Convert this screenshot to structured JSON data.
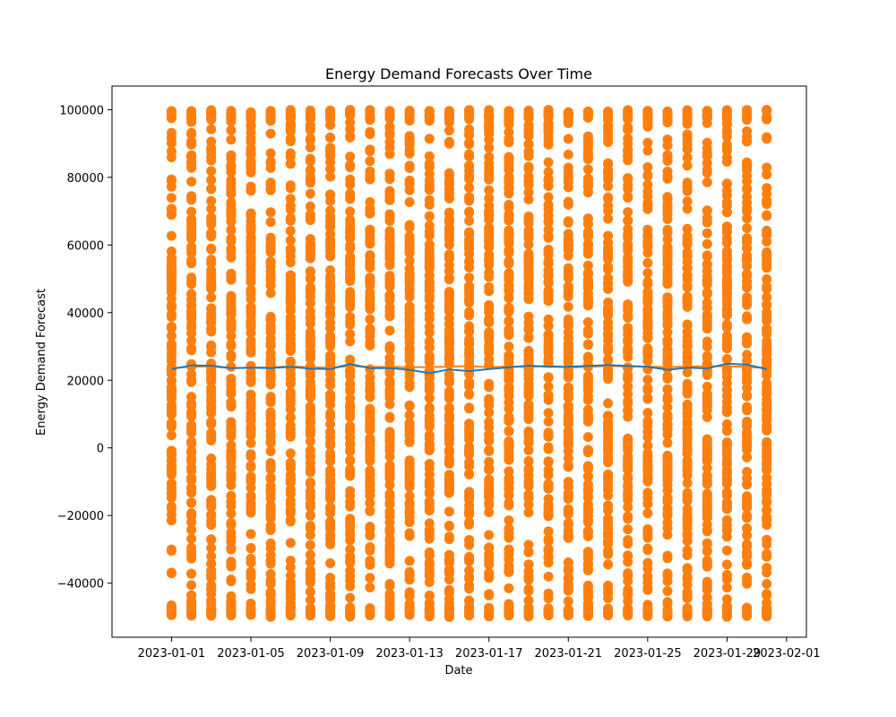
{
  "chart_data": {
    "type": "scatter",
    "title": "Energy Demand Forecasts Over Time",
    "xlabel": "Date",
    "ylabel": "Energy Demand Forecast",
    "xlim": [
      "2022-12-29",
      "2023-02-02"
    ],
    "ylim": [
      -56000,
      107000
    ],
    "grid": false,
    "x_ticks": [
      "2023-01-01",
      "2023-01-05",
      "2023-01-09",
      "2023-01-13",
      "2023-01-17",
      "2023-01-21",
      "2023-01-25",
      "2023-01-29",
      "2023-02-01"
    ],
    "y_ticks": [
      -40000,
      -20000,
      0,
      20000,
      40000,
      60000,
      80000,
      100000
    ],
    "y_tick_labels": [
      "−40000",
      "−20000",
      "0",
      "20000",
      "40000",
      "60000",
      "80000",
      "100000"
    ],
    "dates": [
      "2023-01-01",
      "2023-01-02",
      "2023-01-03",
      "2023-01-04",
      "2023-01-05",
      "2023-01-06",
      "2023-01-07",
      "2023-01-08",
      "2023-01-09",
      "2023-01-10",
      "2023-01-11",
      "2023-01-12",
      "2023-01-13",
      "2023-01-14",
      "2023-01-15",
      "2023-01-16",
      "2023-01-17",
      "2023-01-18",
      "2023-01-19",
      "2023-01-20",
      "2023-01-21",
      "2023-01-22",
      "2023-01-23",
      "2023-01-24",
      "2023-01-25",
      "2023-01-26",
      "2023-01-27",
      "2023-01-28",
      "2023-01-29",
      "2023-01-30",
      "2023-01-31"
    ],
    "series": [
      {
        "kind": "line",
        "color": "#1f77b4",
        "values": [
          23300,
          24400,
          24300,
          23600,
          23700,
          23600,
          24000,
          23400,
          23300,
          24800,
          23600,
          23600,
          23100,
          22100,
          23200,
          22700,
          23300,
          23800,
          24300,
          24000,
          24000,
          24200,
          24500,
          24200,
          24000,
          23100,
          23700,
          23500,
          24900,
          24600,
          23300
        ]
      },
      {
        "kind": "line",
        "color": "#ff7f0e",
        "values": [
          23600,
          24000,
          24100,
          23600,
          23700,
          23800,
          24100,
          23800,
          23700,
          24200,
          23900,
          24000,
          23800,
          23900,
          24000,
          24200,
          23800,
          24100,
          23900,
          24300,
          23800,
          24000,
          24200,
          24100,
          24000,
          23900,
          24000,
          24200,
          24100,
          24000,
          23600
        ]
      },
      {
        "kind": "scatter",
        "color": "#ff7f0e",
        "value_range": [
          -50000,
          100000
        ],
        "points_per_date": 1000
      }
    ]
  }
}
